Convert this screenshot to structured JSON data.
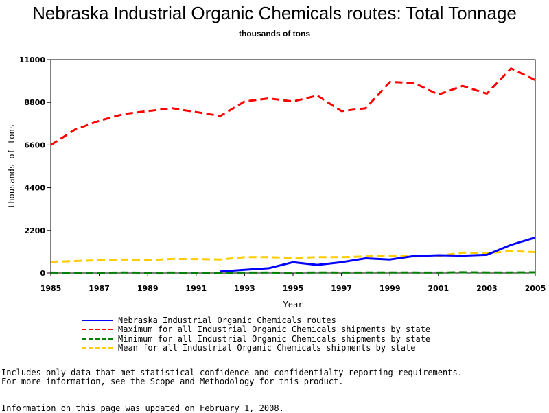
{
  "chart_data": {
    "type": "line",
    "title": "Nebraska Industrial Organic Chemicals routes: Total Tonnage",
    "subtitle": "thousands of tons",
    "xlabel": "Year",
    "ylabel": "thousands of tons",
    "xlim": [
      1985,
      2005
    ],
    "ylim": [
      0,
      11000
    ],
    "xticks": [
      "1985",
      "1987",
      "1989",
      "1991",
      "1993",
      "1995",
      "1997",
      "1999",
      "2001",
      "2003",
      "2005"
    ],
    "yticks": [
      "0",
      "2200",
      "4400",
      "6600",
      "8800",
      "11000"
    ],
    "grid": false,
    "legend_position": "bottom",
    "series": [
      {
        "name": "Nebraska Industrial Organic Chemicals routes",
        "color": "#0000ff",
        "dash": "solid",
        "x": [
          1992,
          1993,
          1994,
          1995,
          1996,
          1997,
          1998,
          1999,
          2000,
          2001,
          2002,
          2003,
          2004,
          2005
        ],
        "y": [
          80,
          170,
          250,
          560,
          420,
          560,
          760,
          700,
          880,
          920,
          900,
          940,
          1450,
          1830
        ]
      },
      {
        "name": "Maximum for all Industrial Organic Chemicals shipments by state",
        "color": "#ff0000",
        "dash": "dashed",
        "x": [
          1985,
          1986,
          1987,
          1988,
          1989,
          1990,
          1991,
          1992,
          1993,
          1994,
          1995,
          1996,
          1997,
          1998,
          1999,
          2000,
          2001,
          2002,
          2003,
          2004,
          2005
        ],
        "y": [
          6600,
          7400,
          7850,
          8200,
          8350,
          8500,
          8300,
          8100,
          8850,
          9000,
          8850,
          9150,
          8350,
          8500,
          9850,
          9800,
          9200,
          9650,
          9250,
          10550,
          9950
        ]
      },
      {
        "name": "Minimum for all Industrial Organic Chemicals shipments by state",
        "color": "#008000",
        "dash": "dashed",
        "x": [
          1985,
          1986,
          1987,
          1988,
          1989,
          1990,
          1991,
          1992,
          1993,
          1994,
          1995,
          1996,
          1997,
          1998,
          1999,
          2000,
          2001,
          2002,
          2003,
          2004,
          2005
        ],
        "y": [
          20,
          10,
          15,
          25,
          15,
          20,
          15,
          10,
          20,
          25,
          10,
          30,
          20,
          25,
          30,
          25,
          20,
          40,
          30,
          30,
          35
        ]
      },
      {
        "name": "Mean for all Industrial Organic Chemicals shipments by state",
        "color": "#ffcc00",
        "dash": "dashed",
        "x": [
          1985,
          1986,
          1987,
          1988,
          1989,
          1990,
          1991,
          1992,
          1993,
          1994,
          1995,
          1996,
          1997,
          1998,
          1999,
          2000,
          2001,
          2002,
          2003,
          2004,
          2005
        ],
        "y": [
          580,
          620,
          660,
          700,
          660,
          730,
          720,
          700,
          820,
          820,
          780,
          820,
          820,
          860,
          900,
          860,
          880,
          1050,
          1030,
          1130,
          1080
        ]
      }
    ]
  },
  "notes": {
    "line1": "Includes only data that met statistical confidence and confidentialty reporting requirements.",
    "line2": "For more information, see the Scope and Methodology for this product.",
    "updated": "Information on this page was updated on February 1, 2008."
  }
}
